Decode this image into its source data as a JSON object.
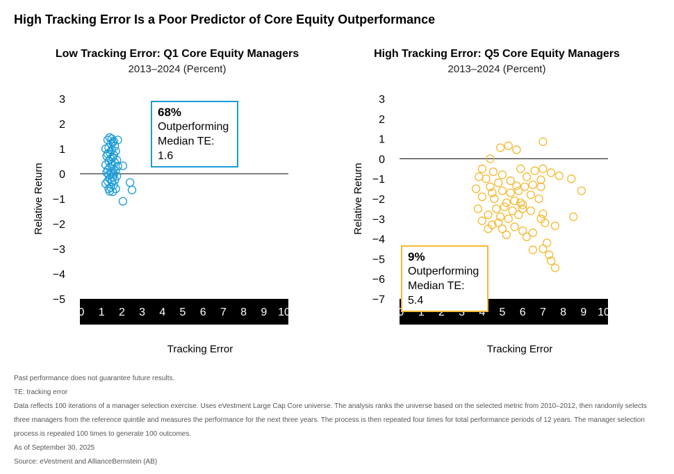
{
  "title": "High Tracking Error Is a Poor Predictor of Core Equity Outperformance",
  "chart_data": [
    {
      "type": "scatter",
      "title": "Low Tracking Error: Q1 Core Equity Managers",
      "subtitle": "2013–2024 (Percent)",
      "xlabel": "Tracking Error",
      "ylabel": "Relative Return",
      "xlim": [
        0,
        10
      ],
      "ylim": [
        -5,
        3
      ],
      "xticks": [
        "0",
        "1",
        "2",
        "3",
        "4",
        "5",
        "6",
        "7",
        "8",
        "9",
        "10"
      ],
      "yticks": [
        "3",
        "2",
        "1",
        "0",
        "−1",
        "−2",
        "−3",
        "−4",
        "−5"
      ],
      "color": "#1a9bd7",
      "annotation": {
        "pct": "68%",
        "line1": "Outperforming",
        "line2": "Median TE: 1.6"
      },
      "points": [
        [
          1.3,
          1.35
        ],
        [
          1.4,
          1.45
        ],
        [
          1.5,
          1.4
        ],
        [
          1.6,
          1.3
        ],
        [
          1.45,
          1.2
        ],
        [
          1.55,
          1.25
        ],
        [
          1.65,
          1.1
        ],
        [
          1.35,
          1.05
        ],
        [
          1.2,
          1.0
        ],
        [
          1.8,
          1.35
        ],
        [
          1.5,
          0.95
        ],
        [
          1.7,
          0.9
        ],
        [
          1.4,
          0.85
        ],
        [
          1.3,
          0.8
        ],
        [
          1.6,
          0.75
        ],
        [
          1.25,
          0.7
        ],
        [
          1.55,
          0.65
        ],
        [
          1.45,
          0.6
        ],
        [
          1.75,
          0.55
        ],
        [
          1.35,
          0.5
        ],
        [
          1.65,
          0.45
        ],
        [
          1.5,
          0.4
        ],
        [
          1.2,
          0.35
        ],
        [
          1.8,
          0.3
        ],
        [
          2.05,
          0.32
        ],
        [
          1.4,
          0.25
        ],
        [
          1.6,
          0.2
        ],
        [
          1.3,
          0.15
        ],
        [
          1.7,
          0.1
        ],
        [
          1.5,
          0.08
        ],
        [
          1.25,
          0.05
        ],
        [
          1.45,
          0.02
        ],
        [
          1.6,
          -0.02
        ],
        [
          1.35,
          -0.05
        ],
        [
          1.75,
          -0.1
        ],
        [
          1.55,
          -0.15
        ],
        [
          1.4,
          -0.2
        ],
        [
          1.65,
          -0.25
        ],
        [
          1.3,
          -0.3
        ],
        [
          1.5,
          -0.32
        ],
        [
          1.2,
          -0.4
        ],
        [
          1.6,
          -0.45
        ],
        [
          1.45,
          -0.55
        ],
        [
          1.7,
          -0.6
        ],
        [
          1.4,
          -0.7
        ],
        [
          1.55,
          -0.72
        ],
        [
          1.35,
          -0.6
        ],
        [
          2.4,
          -0.35
        ],
        [
          2.5,
          -0.65
        ],
        [
          2.05,
          -1.1
        ]
      ]
    },
    {
      "type": "scatter",
      "title": "High Tracking Error: Q5 Core Equity Managers",
      "subtitle": "2013–2024 (Percent)",
      "xlabel": "Tracking Error",
      "ylabel": "Relative Return",
      "xlim": [
        0,
        10
      ],
      "ylim": [
        -7,
        3
      ],
      "xticks": [
        "0",
        "1",
        "2",
        "3",
        "4",
        "5",
        "6",
        "7",
        "8",
        "9",
        "10"
      ],
      "yticks": [
        "3",
        "2",
        "1",
        "0",
        "−1",
        "−2",
        "−3",
        "−4",
        "−5",
        "−6",
        "−7"
      ],
      "color": "#f5b82e",
      "annotation": {
        "pct": "9%",
        "line1": "Outperforming",
        "line2": "Median TE: 5.4"
      },
      "points": [
        [
          7.0,
          0.85
        ],
        [
          5.3,
          0.65
        ],
        [
          4.9,
          0.55
        ],
        [
          5.7,
          0.45
        ],
        [
          4.4,
          0.0
        ],
        [
          4.0,
          -0.5
        ],
        [
          3.85,
          -0.9
        ],
        [
          4.55,
          -0.65
        ],
        [
          5.0,
          -0.8
        ],
        [
          5.9,
          -0.5
        ],
        [
          6.2,
          -0.9
        ],
        [
          6.6,
          -0.6
        ],
        [
          7.0,
          -0.5
        ],
        [
          7.4,
          -0.7
        ],
        [
          7.8,
          -0.85
        ],
        [
          8.4,
          -1.0
        ],
        [
          6.9,
          -1.05
        ],
        [
          6.5,
          -1.3
        ],
        [
          4.2,
          -1.0
        ],
        [
          4.8,
          -1.2
        ],
        [
          5.4,
          -1.1
        ],
        [
          5.7,
          -1.35
        ],
        [
          6.1,
          -1.4
        ],
        [
          6.9,
          -1.4
        ],
        [
          3.7,
          -1.5
        ],
        [
          4.4,
          -1.4
        ],
        [
          5.0,
          -1.6
        ],
        [
          5.4,
          -1.7
        ],
        [
          5.8,
          -1.6
        ],
        [
          6.4,
          -1.8
        ],
        [
          4.0,
          -1.9
        ],
        [
          4.6,
          -2.0
        ],
        [
          5.2,
          -2.2
        ],
        [
          5.6,
          -2.1
        ],
        [
          6.0,
          -2.3
        ],
        [
          6.8,
          -2.0
        ],
        [
          8.9,
          -1.6
        ],
        [
          4.7,
          -2.5
        ],
        [
          5.1,
          -2.4
        ],
        [
          5.5,
          -2.6
        ],
        [
          6.0,
          -2.5
        ],
        [
          6.4,
          -2.6
        ],
        [
          3.8,
          -2.5
        ],
        [
          4.3,
          -2.8
        ],
        [
          4.9,
          -2.9
        ],
        [
          5.3,
          -3.0
        ],
        [
          5.8,
          -2.8
        ],
        [
          7.0,
          -2.75
        ],
        [
          6.9,
          -3.0
        ],
        [
          7.1,
          -3.2
        ],
        [
          4.0,
          -3.1
        ],
        [
          4.5,
          -3.3
        ],
        [
          5.0,
          -3.5
        ],
        [
          5.6,
          -3.4
        ],
        [
          6.0,
          -3.6
        ],
        [
          6.5,
          -3.7
        ],
        [
          7.6,
          -3.35
        ],
        [
          8.5,
          -2.9
        ],
        [
          4.8,
          -3.2
        ],
        [
          5.2,
          -3.8
        ],
        [
          7.2,
          -4.2
        ],
        [
          7.0,
          -4.5
        ],
        [
          6.5,
          -4.55
        ],
        [
          7.3,
          -4.8
        ],
        [
          7.4,
          -5.1
        ],
        [
          7.6,
          -5.45
        ],
        [
          6.2,
          -3.9
        ],
        [
          4.3,
          -3.5
        ],
        [
          5.9,
          -2.2
        ],
        [
          4.5,
          -1.7
        ]
      ]
    }
  ],
  "footer": {
    "disclaimer": "Past performance does not guarantee future results.",
    "te_note": "TE: tracking error",
    "method": "Data reflects 100 iterations of a manager selection exercise. Uses eVestment Large Cap Core universe. The analysis ranks the universe based on the selected metric from 2010–2012, then randomly selects three managers from the reference quintile and measures the performance for the next three years. The process is then repeated four times for total performance periods of 12 years. The manager selection process is repeated 100 times to generate 100 outcomes.",
    "as_of": "As of September 30, 2025",
    "source": "Source: eVestment and AllianceBernstein (AB)"
  }
}
